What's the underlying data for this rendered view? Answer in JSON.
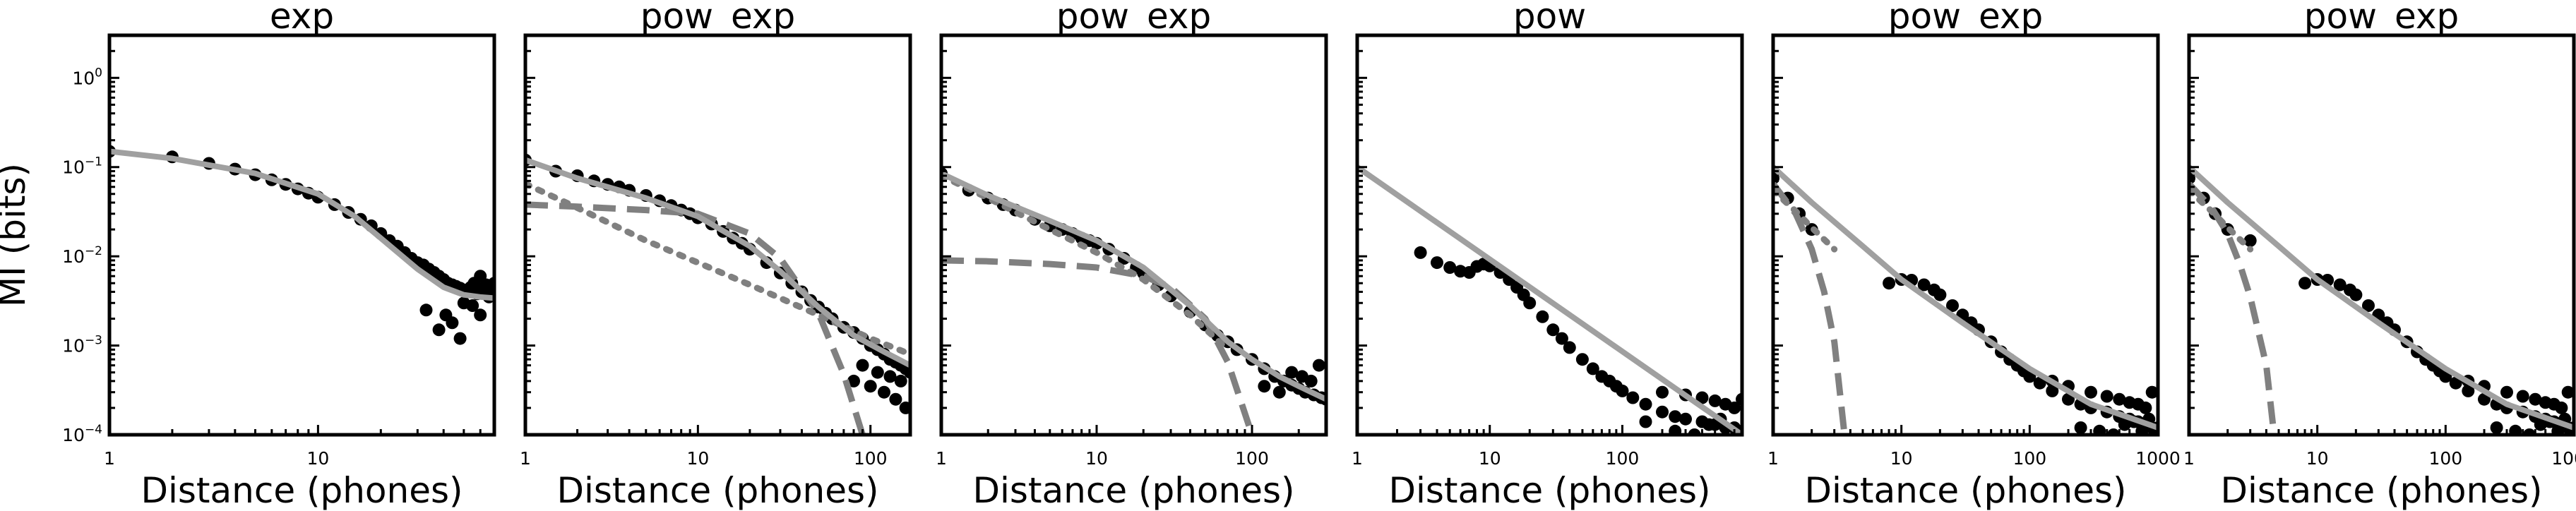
{
  "figure": {
    "ylabel": "MI (bits)",
    "xlabel": "Distance (phones)"
  },
  "colors": {
    "points": "#000000",
    "fit": "#a0a0a0",
    "component": "#808080",
    "frame": "#000000"
  },
  "chart_data": [
    {
      "type": "scatter",
      "title": "exp",
      "xlabel": "Distance (phones)",
      "ylabel": "MI (bits)",
      "xscale": "log",
      "yscale": "log",
      "xlim": [
        1,
        70
      ],
      "ylim": [
        0.0001,
        3
      ],
      "xticks": [
        {
          "value": 1,
          "label": "1"
        },
        {
          "value": 10,
          "label": "10"
        }
      ],
      "scatter": {
        "name": "MI",
        "x": [
          1,
          2,
          3,
          4,
          5,
          6,
          7,
          8,
          9,
          10,
          12,
          14,
          16,
          18,
          20,
          22,
          24,
          26,
          28,
          30,
          32,
          34,
          36,
          38,
          40,
          42,
          44,
          46,
          48,
          50,
          52,
          54,
          56,
          58,
          60,
          62,
          64,
          66,
          68,
          70,
          33,
          38,
          44,
          48,
          41,
          50,
          55,
          60
        ],
        "y": [
          0.15,
          0.13,
          0.11,
          0.095,
          0.082,
          0.072,
          0.064,
          0.057,
          0.051,
          0.046,
          0.038,
          0.031,
          0.026,
          0.022,
          0.018,
          0.015,
          0.013,
          0.011,
          0.0095,
          0.0085,
          0.008,
          0.0072,
          0.0066,
          0.006,
          0.0055,
          0.005,
          0.0048,
          0.0046,
          0.0044,
          0.0042,
          0.004,
          0.0045,
          0.005,
          0.0038,
          0.006,
          0.0042,
          0.0048,
          0.0035,
          0.0045,
          0.005,
          0.0025,
          0.0015,
          0.0018,
          0.0012,
          0.0022,
          0.003,
          0.0028,
          0.0022
        ]
      },
      "series": [
        {
          "name": "fit",
          "style": "solid",
          "x": [
            1,
            2,
            5,
            10,
            15,
            20,
            30,
            40,
            50,
            60,
            70
          ],
          "y": [
            0.15,
            0.125,
            0.085,
            0.05,
            0.028,
            0.016,
            0.0072,
            0.0045,
            0.0037,
            0.0035,
            0.0034
          ]
        }
      ]
    },
    {
      "type": "scatter",
      "title": "pow_exp",
      "xlabel": "Distance (phones)",
      "xscale": "log",
      "yscale": "log",
      "xlim": [
        1,
        170
      ],
      "ylim": [
        0.0001,
        3
      ],
      "xticks": [
        {
          "value": 1,
          "label": "1"
        },
        {
          "value": 10,
          "label": "10"
        },
        {
          "value": 100,
          "label": "100"
        }
      ],
      "scatter": {
        "name": "MI",
        "x": [
          1,
          1.5,
          2,
          2.5,
          3,
          3.5,
          4,
          5,
          6,
          7,
          8,
          9,
          10,
          12,
          14,
          16,
          18,
          20,
          25,
          30,
          35,
          40,
          45,
          50,
          55,
          60,
          70,
          80,
          90,
          100,
          110,
          120,
          130,
          140,
          150,
          160,
          170,
          80,
          100,
          120,
          140,
          160,
          90,
          110,
          130,
          150
        ],
        "y": [
          0.12,
          0.09,
          0.08,
          0.07,
          0.064,
          0.06,
          0.055,
          0.048,
          0.042,
          0.037,
          0.033,
          0.03,
          0.027,
          0.023,
          0.019,
          0.016,
          0.014,
          0.012,
          0.0085,
          0.0065,
          0.005,
          0.004,
          0.0032,
          0.0027,
          0.0023,
          0.002,
          0.0016,
          0.0014,
          0.0012,
          0.001,
          0.0009,
          0.0008,
          0.0007,
          0.00065,
          0.0006,
          0.00055,
          0.0005,
          0.0004,
          0.00035,
          0.0003,
          0.00025,
          0.0002,
          0.0006,
          0.0005,
          0.00045,
          0.0004
        ]
      },
      "series": [
        {
          "name": "fit",
          "style": "solid",
          "x": [
            1,
            2,
            5,
            10,
            20,
            30,
            50,
            80,
            120,
            170
          ],
          "y": [
            0.12,
            0.075,
            0.045,
            0.028,
            0.013,
            0.0068,
            0.0027,
            0.0013,
            0.00085,
            0.0006
          ]
        },
        {
          "name": "component-1",
          "style": "dashed",
          "x": [
            1,
            2,
            5,
            10,
            20,
            30,
            50,
            70,
            90
          ],
          "y": [
            0.038,
            0.036,
            0.033,
            0.03,
            0.018,
            0.0095,
            0.0023,
            0.00048,
            0.0001
          ]
        },
        {
          "name": "component-2",
          "style": "dotted",
          "x": [
            1,
            2,
            5,
            10,
            20,
            50,
            100,
            170
          ],
          "y": [
            0.065,
            0.035,
            0.015,
            0.0085,
            0.0048,
            0.0022,
            0.0012,
            0.0008
          ]
        }
      ]
    },
    {
      "type": "scatter",
      "title": "pow_exp",
      "xlabel": "Distance (phones)",
      "xscale": "log",
      "yscale": "log",
      "xlim": [
        1,
        300
      ],
      "ylim": [
        0.0001,
        3
      ],
      "xticks": [
        {
          "value": 1,
          "label": "1"
        },
        {
          "value": 10,
          "label": "10"
        },
        {
          "value": 100,
          "label": "100"
        }
      ],
      "scatter": {
        "name": "MI",
        "x": [
          1,
          1.5,
          2,
          2.5,
          3,
          4,
          5,
          6,
          7,
          8,
          9,
          10,
          12,
          15,
          18,
          20,
          25,
          30,
          40,
          50,
          60,
          70,
          80,
          100,
          120,
          140,
          160,
          180,
          200,
          220,
          250,
          280,
          300,
          120,
          150,
          180,
          210,
          240,
          270
        ],
        "y": [
          0.085,
          0.055,
          0.045,
          0.038,
          0.033,
          0.026,
          0.022,
          0.02,
          0.018,
          0.016,
          0.015,
          0.014,
          0.012,
          0.0095,
          0.0075,
          0.0065,
          0.0048,
          0.0036,
          0.0024,
          0.0017,
          0.0013,
          0.0011,
          0.0009,
          0.0007,
          0.00055,
          0.00045,
          0.0004,
          0.00036,
          0.00033,
          0.0003,
          0.00028,
          0.00026,
          0.00025,
          0.00035,
          0.0003,
          0.0005,
          0.00045,
          0.0004,
          0.0006
        ]
      },
      "series": [
        {
          "name": "fit",
          "style": "solid",
          "x": [
            1,
            2,
            5,
            10,
            20,
            40,
            70,
            100,
            150,
            200,
            300
          ],
          "y": [
            0.085,
            0.048,
            0.025,
            0.015,
            0.0075,
            0.0028,
            0.0011,
            0.0007,
            0.00045,
            0.00035,
            0.00025
          ]
        },
        {
          "name": "component-1",
          "style": "dashed",
          "x": [
            1,
            2,
            5,
            10,
            20,
            30,
            50,
            70,
            100
          ],
          "y": [
            0.009,
            0.0088,
            0.0082,
            0.0075,
            0.006,
            0.0045,
            0.002,
            0.00065,
            0.0001
          ]
        },
        {
          "name": "component-2",
          "style": "dotted",
          "x": [
            1,
            2,
            5,
            10,
            20,
            40,
            70
          ],
          "y": [
            0.08,
            0.045,
            0.02,
            0.011,
            0.0055,
            0.0022,
            0.0009
          ]
        }
      ]
    },
    {
      "type": "scatter",
      "title": "pow",
      "xlabel": "Distance (phones)",
      "xscale": "log",
      "yscale": "log",
      "xlim": [
        1,
        800
      ],
      "ylim": [
        0.0001,
        3
      ],
      "xticks": [
        {
          "value": 1,
          "label": "1"
        },
        {
          "value": 10,
          "label": "10"
        },
        {
          "value": 100,
          "label": "100"
        }
      ],
      "scatter": {
        "name": "MI",
        "x": [
          3,
          4,
          5,
          6,
          7,
          8,
          9,
          10,
          12,
          14,
          16,
          18,
          20,
          25,
          30,
          35,
          40,
          50,
          60,
          70,
          80,
          90,
          100,
          120,
          150,
          200,
          250,
          300,
          400,
          500,
          600,
          700,
          800,
          200,
          300,
          400,
          500,
          600,
          700,
          800,
          150,
          250,
          350,
          450,
          550
        ],
        "y": [
          0.011,
          0.0085,
          0.0075,
          0.0068,
          0.0066,
          0.0077,
          0.0082,
          0.0078,
          0.0066,
          0.0055,
          0.0045,
          0.0037,
          0.003,
          0.0021,
          0.0015,
          0.0012,
          0.00095,
          0.0007,
          0.00055,
          0.00045,
          0.0004,
          0.00035,
          0.00031,
          0.00026,
          0.00022,
          0.00018,
          0.00016,
          0.00015,
          0.00014,
          0.00013,
          0.00012,
          0.00012,
          0.00011,
          0.0003,
          0.00028,
          0.00026,
          0.00024,
          0.00022,
          0.0002,
          0.00025,
          0.00014,
          0.00011,
          0.0001,
          0.00013,
          0.00015
        ]
      },
      "series": [
        {
          "name": "fit",
          "style": "solid",
          "x": [
            1,
            800
          ],
          "y": [
            0.1,
            0.0001
          ]
        }
      ]
    },
    {
      "type": "scatter",
      "title": "pow_exp",
      "xlabel": "Distance (phones)",
      "xscale": "log",
      "yscale": "log",
      "xlim": [
        1,
        1000
      ],
      "ylim": [
        0.0001,
        3
      ],
      "xticks": [
        {
          "value": 1,
          "label": "1"
        },
        {
          "value": 10,
          "label": "10"
        },
        {
          "value": 100,
          "label": "100"
        },
        {
          "value": 1000,
          "label": "1000"
        }
      ],
      "scatter": {
        "name": "MI",
        "x": [
          1,
          1.3,
          1.6,
          2,
          8,
          10,
          12,
          15,
          18,
          20,
          25,
          30,
          35,
          40,
          50,
          60,
          70,
          80,
          90,
          100,
          120,
          150,
          200,
          250,
          300,
          400,
          500,
          600,
          700,
          800,
          900,
          1000,
          150,
          200,
          300,
          400,
          500,
          600,
          700,
          800,
          900,
          250,
          350,
          450,
          550,
          650,
          750,
          850
        ],
        "y": [
          0.075,
          0.045,
          0.03,
          0.02,
          0.005,
          0.0055,
          0.0054,
          0.0048,
          0.0042,
          0.0037,
          0.0028,
          0.0022,
          0.0018,
          0.0015,
          0.0011,
          0.00085,
          0.0007,
          0.0006,
          0.00052,
          0.00045,
          0.00038,
          0.00031,
          0.00025,
          0.00022,
          0.0002,
          0.00018,
          0.00016,
          0.00015,
          0.00014,
          0.00013,
          0.00012,
          0.00012,
          0.0004,
          0.00035,
          0.0003,
          0.00027,
          0.00025,
          0.00023,
          0.00022,
          0.0002,
          0.0003,
          0.00012,
          0.00011,
          0.0001,
          0.00013,
          0.00014,
          0.00011,
          0.00015
        ]
      },
      "series": [
        {
          "name": "fit",
          "style": "solid",
          "x": [
            1,
            2,
            5,
            10,
            30,
            100,
            300,
            1000
          ],
          "y": [
            0.1,
            0.04,
            0.013,
            0.0055,
            0.0018,
            0.00055,
            0.00022,
            0.00012
          ]
        },
        {
          "name": "component-1",
          "style": "dashed",
          "x": [
            1,
            1.5,
            2,
            2.5,
            3,
            3.6
          ],
          "y": [
            0.065,
            0.03,
            0.012,
            0.004,
            0.0011,
            0.0001
          ]
        },
        {
          "name": "component-2",
          "style": "dotted",
          "x": [
            1,
            1.5,
            2,
            3
          ],
          "y": [
            0.055,
            0.032,
            0.021,
            0.012
          ]
        }
      ]
    },
    {
      "type": "scatter",
      "title": "pow_exp",
      "xlabel": "Distance (phones)",
      "xscale": "log",
      "yscale": "log",
      "xlim": [
        1,
        1000
      ],
      "ylim": [
        0.0001,
        3
      ],
      "xticks": [
        {
          "value": 1,
          "label": "1"
        },
        {
          "value": 10,
          "label": "10"
        },
        {
          "value": 100,
          "label": "100"
        },
        {
          "value": 1000,
          "label": "1000"
        }
      ],
      "scatter": {
        "name": "MI",
        "x": [
          1,
          1.3,
          1.6,
          2,
          8,
          10,
          12,
          15,
          18,
          20,
          25,
          30,
          35,
          40,
          50,
          60,
          70,
          80,
          90,
          100,
          120,
          150,
          200,
          250,
          300,
          400,
          500,
          600,
          700,
          800,
          900,
          1000,
          150,
          200,
          300,
          400,
          500,
          600,
          700,
          800,
          900,
          250,
          350,
          450,
          550,
          650,
          750,
          850,
          3
        ],
        "y": [
          0.075,
          0.045,
          0.03,
          0.02,
          0.005,
          0.0055,
          0.0054,
          0.0048,
          0.0042,
          0.0037,
          0.0028,
          0.0022,
          0.0018,
          0.0015,
          0.0011,
          0.00085,
          0.0007,
          0.0006,
          0.00052,
          0.00045,
          0.00038,
          0.00031,
          0.00025,
          0.00022,
          0.0002,
          0.00018,
          0.00016,
          0.00015,
          0.00014,
          0.00013,
          0.00012,
          0.00012,
          0.0004,
          0.00035,
          0.0003,
          0.00027,
          0.00025,
          0.00023,
          0.00022,
          0.0002,
          0.0003,
          0.00012,
          0.00011,
          0.0001,
          0.00013,
          0.00014,
          0.00011,
          0.00015,
          0.015
        ]
      },
      "series": [
        {
          "name": "fit",
          "style": "solid",
          "x": [
            1,
            2,
            5,
            10,
            30,
            100,
            300,
            1000
          ],
          "y": [
            0.1,
            0.04,
            0.013,
            0.0055,
            0.0018,
            0.00055,
            0.00022,
            0.00012
          ]
        },
        {
          "name": "component-1",
          "style": "dashed",
          "x": [
            1,
            1.5,
            2,
            2.5,
            3,
            4,
            4.6
          ],
          "y": [
            0.065,
            0.035,
            0.018,
            0.008,
            0.0035,
            0.0006,
            0.0001
          ]
        },
        {
          "name": "component-2",
          "style": "dotted",
          "x": [
            1,
            1.5,
            2,
            3
          ],
          "y": [
            0.055,
            0.032,
            0.021,
            0.012
          ]
        }
      ]
    }
  ]
}
